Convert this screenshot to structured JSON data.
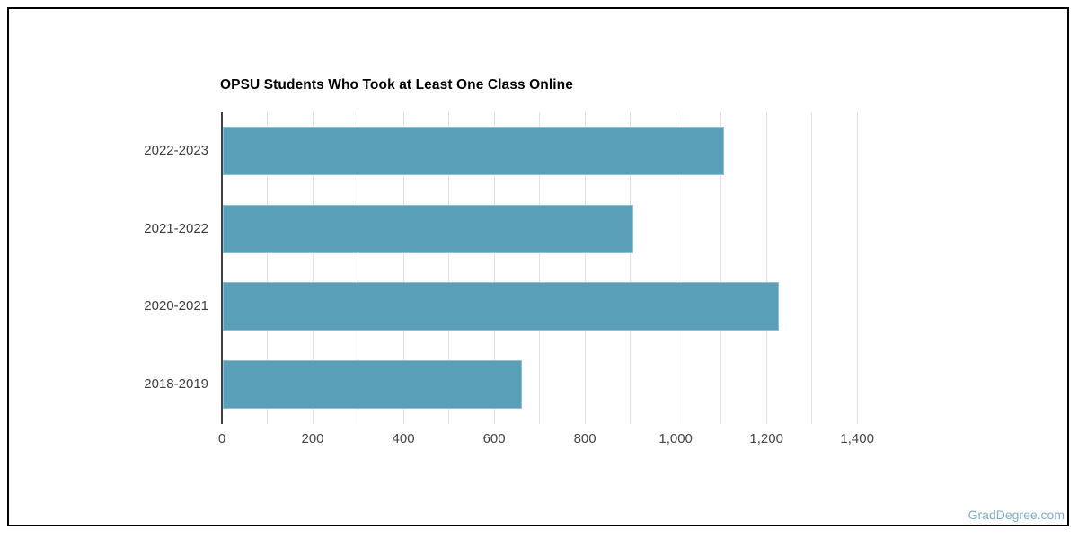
{
  "frame": {
    "border_color": "#000000",
    "background_color": "#ffffff"
  },
  "chart_data": {
    "type": "bar",
    "orientation": "horizontal",
    "title": "OPSU Students Who Took at Least One Class Online",
    "categories": [
      "2022-2023",
      "2021-2022",
      "2020-2021",
      "2018-2019"
    ],
    "values": [
      1105,
      905,
      1225,
      660
    ],
    "xlabel": "",
    "ylabel": "",
    "xlim": [
      0,
      1455
    ],
    "gridline_step": 100,
    "grid": true,
    "legend": "none",
    "xticks": [
      {
        "value": 0,
        "label": "0"
      },
      {
        "value": 200,
        "label": "200"
      },
      {
        "value": 400,
        "label": "400"
      },
      {
        "value": 600,
        "label": "600"
      },
      {
        "value": 800,
        "label": "800"
      },
      {
        "value": 1000,
        "label": "1,000"
      },
      {
        "value": 1200,
        "label": "1,200"
      },
      {
        "value": 1400,
        "label": "1,400"
      }
    ],
    "bar_color": "#5a9fb8",
    "gridline_color": "#e2e2e2",
    "axis_line_color": "#424242",
    "tick_label_color": "#444444",
    "category_label_color": "#3d3d3d",
    "title_color": "#000000"
  },
  "watermark": {
    "text": "GradDegree.com",
    "color": "#7cb0c8"
  }
}
